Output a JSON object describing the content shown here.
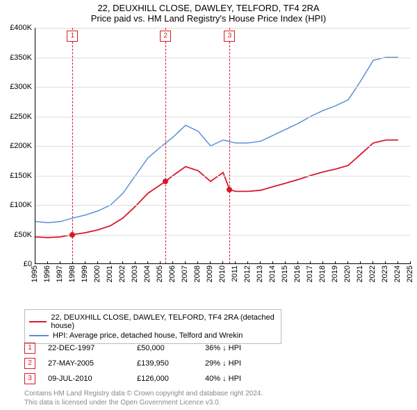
{
  "title_line1": "22, DEUXHILL CLOSE, DAWLEY, TELFORD, TF4 2RA",
  "title_line2": "Price paid vs. HM Land Registry's House Price Index (HPI)",
  "colors": {
    "series_property": "#d8182a",
    "series_hpi": "#5b8fd6",
    "marker_border": "#d8182a",
    "grid": "#dddddd",
    "attrib": "#888888"
  },
  "chart": {
    "type": "line",
    "x_min": 1995,
    "x_max": 2025,
    "x_ticks": [
      1995,
      1996,
      1997,
      1998,
      1999,
      2000,
      2001,
      2002,
      2003,
      2004,
      2005,
      2006,
      2007,
      2008,
      2009,
      2010,
      2011,
      2012,
      2013,
      2014,
      2015,
      2016,
      2017,
      2018,
      2019,
      2020,
      2021,
      2022,
      2023,
      2024,
      2025
    ],
    "y_min": 0,
    "y_max": 400000,
    "y_ticks": [
      {
        "v": 0,
        "label": "£0"
      },
      {
        "v": 50000,
        "label": "£50K"
      },
      {
        "v": 100000,
        "label": "£100K"
      },
      {
        "v": 150000,
        "label": "£150K"
      },
      {
        "v": 200000,
        "label": "£200K"
      },
      {
        "v": 250000,
        "label": "£250K"
      },
      {
        "v": 300000,
        "label": "£300K"
      },
      {
        "v": 350000,
        "label": "£350K"
      },
      {
        "v": 400000,
        "label": "£400K"
      }
    ],
    "series_hpi": [
      {
        "x": 1995,
        "y": 72000
      },
      {
        "x": 1996,
        "y": 70000
      },
      {
        "x": 1997,
        "y": 72000
      },
      {
        "x": 1998,
        "y": 78000
      },
      {
        "x": 1999,
        "y": 83000
      },
      {
        "x": 2000,
        "y": 90000
      },
      {
        "x": 2001,
        "y": 100000
      },
      {
        "x": 2002,
        "y": 120000
      },
      {
        "x": 2003,
        "y": 150000
      },
      {
        "x": 2004,
        "y": 180000
      },
      {
        "x": 2005,
        "y": 198000
      },
      {
        "x": 2006,
        "y": 215000
      },
      {
        "x": 2007,
        "y": 235000
      },
      {
        "x": 2008,
        "y": 225000
      },
      {
        "x": 2009,
        "y": 200000
      },
      {
        "x": 2010,
        "y": 210000
      },
      {
        "x": 2011,
        "y": 205000
      },
      {
        "x": 2012,
        "y": 205000
      },
      {
        "x": 2013,
        "y": 208000
      },
      {
        "x": 2014,
        "y": 218000
      },
      {
        "x": 2015,
        "y": 228000
      },
      {
        "x": 2016,
        "y": 238000
      },
      {
        "x": 2017,
        "y": 250000
      },
      {
        "x": 2018,
        "y": 260000
      },
      {
        "x": 2019,
        "y": 268000
      },
      {
        "x": 2020,
        "y": 278000
      },
      {
        "x": 2021,
        "y": 310000
      },
      {
        "x": 2022,
        "y": 345000
      },
      {
        "x": 2023,
        "y": 350000
      },
      {
        "x": 2024,
        "y": 350000
      }
    ],
    "series_property": [
      {
        "x": 1995,
        "y": 46000
      },
      {
        "x": 1996,
        "y": 45000
      },
      {
        "x": 1997,
        "y": 46000
      },
      {
        "x": 1997.97,
        "y": 50000
      },
      {
        "x": 1999,
        "y": 53000
      },
      {
        "x": 2000,
        "y": 58000
      },
      {
        "x": 2001,
        "y": 65000
      },
      {
        "x": 2002,
        "y": 78000
      },
      {
        "x": 2003,
        "y": 98000
      },
      {
        "x": 2004,
        "y": 120000
      },
      {
        "x": 2005.4,
        "y": 139950
      },
      {
        "x": 2006,
        "y": 150000
      },
      {
        "x": 2007,
        "y": 165000
      },
      {
        "x": 2008,
        "y": 158000
      },
      {
        "x": 2009,
        "y": 140000
      },
      {
        "x": 2010,
        "y": 155000
      },
      {
        "x": 2010.52,
        "y": 126000
      },
      {
        "x": 2011,
        "y": 123000
      },
      {
        "x": 2012,
        "y": 123000
      },
      {
        "x": 2013,
        "y": 125000
      },
      {
        "x": 2014,
        "y": 131000
      },
      {
        "x": 2015,
        "y": 137000
      },
      {
        "x": 2016,
        "y": 143000
      },
      {
        "x": 2017,
        "y": 150000
      },
      {
        "x": 2018,
        "y": 156000
      },
      {
        "x": 2019,
        "y": 161000
      },
      {
        "x": 2020,
        "y": 167000
      },
      {
        "x": 2021,
        "y": 186000
      },
      {
        "x": 2022,
        "y": 205000
      },
      {
        "x": 2023,
        "y": 210000
      },
      {
        "x": 2024,
        "y": 210000
      }
    ],
    "sale_markers": [
      {
        "n": "1",
        "x": 1997.97,
        "y": 50000
      },
      {
        "n": "2",
        "x": 2005.4,
        "y": 139950
      },
      {
        "n": "3",
        "x": 2010.52,
        "y": 126000
      }
    ]
  },
  "legend": {
    "row1": "22, DEUXHILL CLOSE, DAWLEY, TELFORD, TF4 2RA (detached house)",
    "row2": "HPI: Average price, detached house, Telford and Wrekin"
  },
  "sales": [
    {
      "n": "1",
      "date": "22-DEC-1997",
      "price": "£50,000",
      "diff": "36% ↓ HPI"
    },
    {
      "n": "2",
      "date": "27-MAY-2005",
      "price": "£139,950",
      "diff": "29% ↓ HPI"
    },
    {
      "n": "3",
      "date": "09-JUL-2010",
      "price": "£126,000",
      "diff": "40% ↓ HPI"
    }
  ],
  "attribution": {
    "line1": "Contains HM Land Registry data © Crown copyright and database right 2024.",
    "line2": "This data is licensed under the Open Government Licence v3.0."
  }
}
